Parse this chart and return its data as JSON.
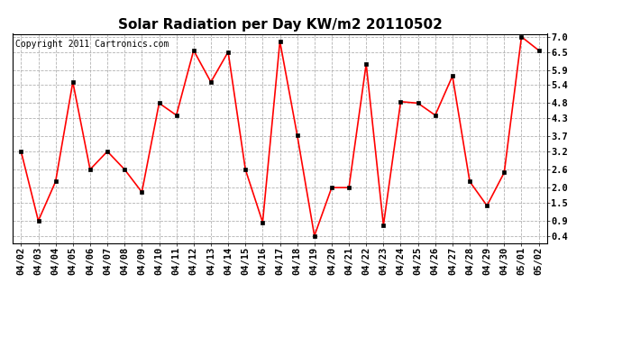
{
  "title": "Solar Radiation per Day KW/m2 20110502",
  "copyright": "Copyright 2011 Cartronics.com",
  "x_labels": [
    "04/02",
    "04/03",
    "04/04",
    "04/05",
    "04/06",
    "04/07",
    "04/08",
    "04/09",
    "04/10",
    "04/11",
    "04/12",
    "04/13",
    "04/14",
    "04/15",
    "04/16",
    "04/17",
    "04/18",
    "04/19",
    "04/20",
    "04/21",
    "04/22",
    "04/23",
    "04/24",
    "04/25",
    "04/26",
    "04/27",
    "04/28",
    "04/29",
    "04/30",
    "05/01",
    "05/02"
  ],
  "y_values": [
    3.2,
    0.9,
    2.2,
    5.5,
    2.6,
    3.2,
    2.6,
    1.85,
    4.8,
    4.4,
    6.55,
    5.5,
    6.5,
    2.6,
    0.85,
    6.85,
    3.75,
    0.4,
    2.0,
    2.0,
    6.1,
    0.75,
    4.85,
    4.8,
    4.4,
    5.7,
    2.2,
    1.4,
    2.5,
    7.0,
    6.55
  ],
  "y_ticks": [
    0.4,
    0.9,
    1.5,
    2.0,
    2.6,
    3.2,
    3.7,
    4.3,
    4.8,
    5.4,
    5.9,
    6.5,
    7.0
  ],
  "y_min": 0.15,
  "y_max": 7.1,
  "line_color": "red",
  "marker_color": "black",
  "bg_color": "white",
  "grid_color": "#aaaaaa",
  "title_fontsize": 11,
  "copyright_fontsize": 7,
  "tick_fontsize": 7.5
}
